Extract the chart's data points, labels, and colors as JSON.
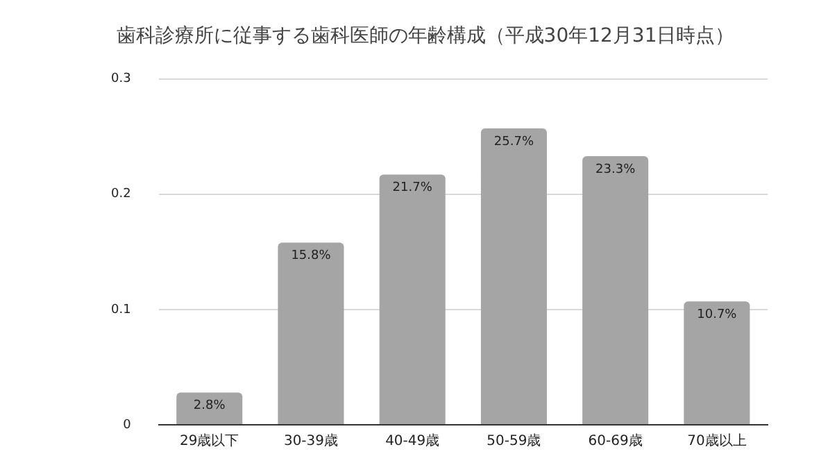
{
  "chart_data": {
    "type": "bar",
    "title": "歯科診療所に従事する歯科医師の年齢構成（平成30年12月31日時点）",
    "categories": [
      "29歳以下",
      "30-39歳",
      "40-49歳",
      "50-59歳",
      "60-69歳",
      "70歳以上"
    ],
    "values": [
      0.028,
      0.158,
      0.217,
      0.257,
      0.233,
      0.107
    ],
    "value_labels": [
      "2.8%",
      "15.8%",
      "21.7%",
      "25.7%",
      "23.3%",
      "10.7%"
    ],
    "color": "#a5a5a5",
    "ylim": [
      0,
      0.3
    ],
    "yticks": [
      0,
      0.1,
      0.2,
      0.3
    ],
    "grid": "y",
    "legend": false
  }
}
